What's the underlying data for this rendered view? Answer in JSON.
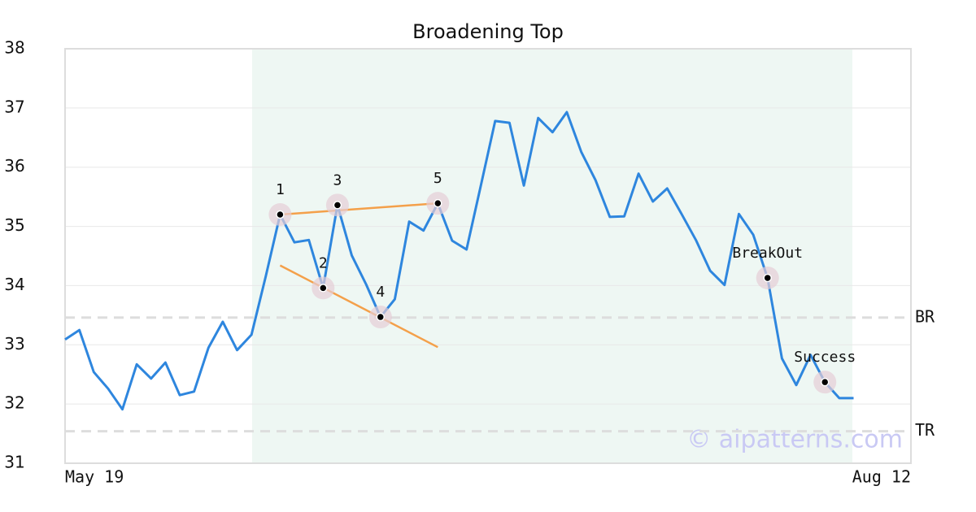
{
  "chart_data": {
    "type": "line",
    "title": "Broadening Top",
    "categories": [
      "May 19",
      null,
      null,
      null,
      null,
      null,
      null,
      null,
      null,
      null,
      null,
      null,
      null,
      null,
      null,
      null,
      null,
      null,
      null,
      null,
      null,
      null,
      null,
      null,
      null,
      null,
      null,
      null,
      null,
      null,
      null,
      null,
      null,
      null,
      null,
      null,
      null,
      null,
      null,
      null,
      null,
      null,
      null,
      null,
      null,
      null,
      null,
      null,
      null,
      null,
      null,
      null,
      null,
      null,
      null,
      null,
      null,
      null,
      null,
      "Aug 12"
    ],
    "values": [
      33.09,
      33.25,
      32.54,
      32.26,
      31.91,
      32.67,
      32.43,
      32.7,
      32.15,
      32.21,
      32.95,
      33.39,
      32.91,
      33.17,
      34.16,
      35.2,
      34.73,
      34.77,
      33.96,
      35.36,
      34.51,
      34.02,
      33.47,
      33.77,
      35.08,
      34.93,
      35.39,
      34.76,
      34.61,
      35.69,
      36.78,
      36.75,
      35.69,
      36.83,
      36.59,
      36.93,
      36.26,
      35.78,
      35.16,
      35.17,
      35.89,
      35.42,
      35.64,
      35.21,
      34.77,
      34.25,
      34.01,
      35.21,
      34.86,
      34.13,
      32.77,
      32.32,
      32.83,
      32.37,
      32.1,
      32.1,
      null,
      null,
      null,
      null
    ],
    "color": "#2e86de",
    "ylim": [
      31,
      38
    ],
    "yticks": [
      31,
      32,
      33,
      34,
      35,
      36,
      37,
      38
    ],
    "grid": true,
    "points": [
      {
        "label": "1",
        "x": 15,
        "y": 35.2
      },
      {
        "label": "2",
        "x": 18,
        "y": 33.96
      },
      {
        "label": "3",
        "x": 19,
        "y": 35.36
      },
      {
        "label": "4",
        "x": 22,
        "y": 33.47
      },
      {
        "label": "5",
        "x": 26,
        "y": 35.39
      },
      {
        "label": "BreakOut",
        "x": 49,
        "y": 34.13
      },
      {
        "label": "Success",
        "x": 53,
        "y": 32.37
      }
    ],
    "trendlines": [
      {
        "x": [
          15,
          26
        ],
        "y": [
          35.2,
          35.39
        ],
        "color": "#f4a04a"
      },
      {
        "x": [
          15,
          26
        ],
        "y": [
          34.34,
          32.96
        ],
        "color": "#f4a04a"
      }
    ],
    "levels": [
      {
        "label": "BR",
        "value": 33.46
      },
      {
        "label": "TR",
        "value": 31.54
      }
    ],
    "watermark": "© aipatterns.com"
  }
}
